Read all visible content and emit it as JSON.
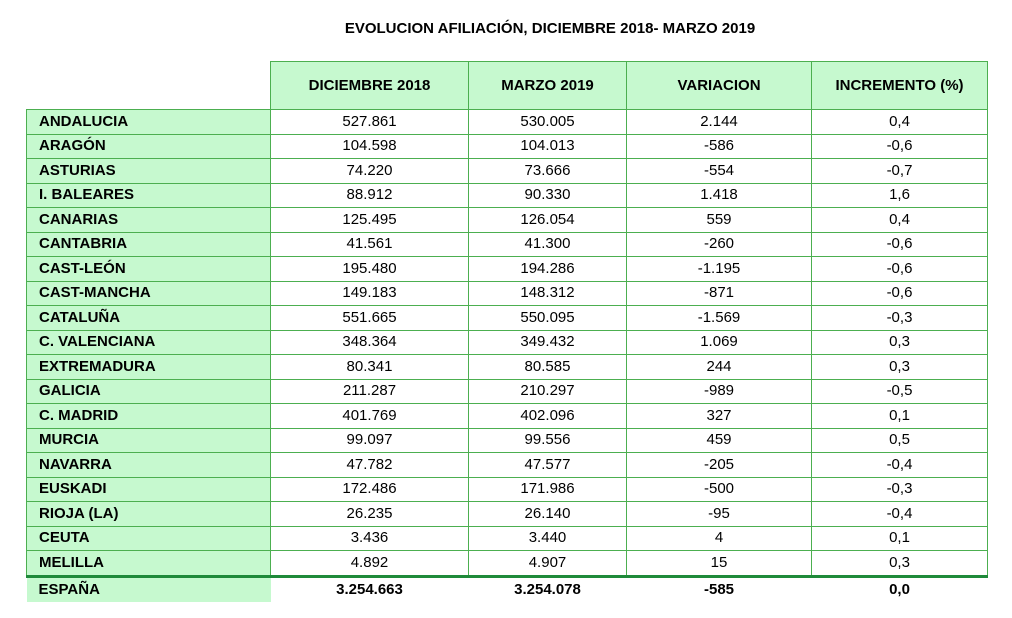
{
  "title": "EVOLUCION AFILIACIÓN, DICIEMBRE 2018- MARZO 2019",
  "columns": [
    "DICIEMBRE 2018",
    "MARZO 2019",
    "VARIACION",
    "INCREMENTO (%)"
  ],
  "rows": [
    [
      "ANDALUCIA",
      "527.861",
      "530.005",
      "2.144",
      "0,4"
    ],
    [
      "ARAGÓN",
      "104.598",
      "104.013",
      "-586",
      "-0,6"
    ],
    [
      "ASTURIAS",
      "74.220",
      "73.666",
      "-554",
      "-0,7"
    ],
    [
      "I. BALEARES",
      "88.912",
      "90.330",
      "1.418",
      "1,6"
    ],
    [
      "CANARIAS",
      "125.495",
      "126.054",
      "559",
      "0,4"
    ],
    [
      "CANTABRIA",
      "41.561",
      "41.300",
      "-260",
      "-0,6"
    ],
    [
      "CAST-LEÓN",
      "195.480",
      "194.286",
      "-1.195",
      "-0,6"
    ],
    [
      "CAST-MANCHA",
      "149.183",
      "148.312",
      "-871",
      "-0,6"
    ],
    [
      "CATALUÑA",
      "551.665",
      "550.095",
      "-1.569",
      "-0,3"
    ],
    [
      "C. VALENCIANA",
      "348.364",
      "349.432",
      "1.069",
      "0,3"
    ],
    [
      "EXTREMADURA",
      "80.341",
      "80.585",
      "244",
      "0,3"
    ],
    [
      "GALICIA",
      "211.287",
      "210.297",
      "-989",
      "-0,5"
    ],
    [
      "C. MADRID",
      "401.769",
      "402.096",
      "327",
      "0,1"
    ],
    [
      "MURCIA",
      "99.097",
      "99.556",
      "459",
      "0,5"
    ],
    [
      "NAVARRA",
      "47.782",
      "47.577",
      "-205",
      "-0,4"
    ],
    [
      "EUSKADI",
      "172.486",
      "171.986",
      "-500",
      "-0,3"
    ],
    [
      "RIOJA (LA)",
      "26.235",
      "26.140",
      "-95",
      "-0,4"
    ],
    [
      "CEUTA",
      "3.436",
      "3.440",
      "4",
      "0,1"
    ],
    [
      "MELILLA",
      "4.892",
      "4.907",
      "15",
      "0,3"
    ]
  ],
  "total": [
    "ESPAÑA",
    "3.254.663",
    "3.254.078",
    "-585",
    "0,0"
  ],
  "colors": {
    "header_fill": "#c6f9cf",
    "grid": "#4caf50"
  }
}
